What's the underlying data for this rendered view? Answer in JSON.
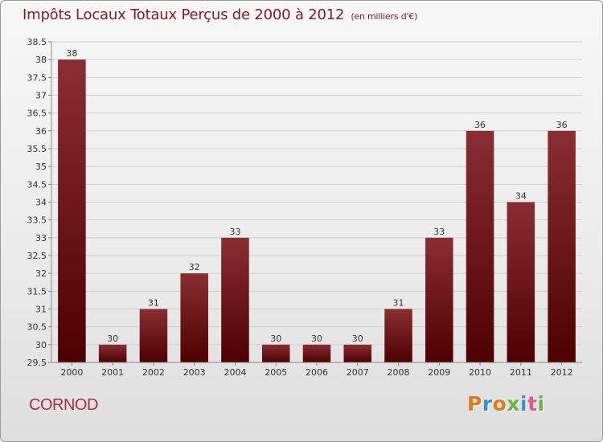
{
  "title": "Impôts Locaux Totaux Perçus de 2000 à 2012",
  "title_unit": "(en milliers d'€)",
  "city": "CORNOD",
  "logo": {
    "text": "Proxiti",
    "letter_colors": [
      "#e07b1a",
      "#3a8fd0",
      "#e07b1a",
      "#6db33f",
      "#3a8fd0",
      "#e05a8a",
      "#6db33f"
    ]
  },
  "colors": {
    "bar_top": "#8a2e34",
    "bar_bottom": "#4e0000",
    "grid": "#cfcfcf",
    "axis": "#888888"
  },
  "chart_data": {
    "type": "bar",
    "title": "Impôts Locaux Totaux Perçus de 2000 à 2012",
    "xlabel": "",
    "ylabel": "",
    "ylim": [
      29.5,
      38.5
    ],
    "ytick_step": 0.5,
    "ytick_labels": [
      "29.5",
      "30",
      "30.5",
      "31",
      "31.5",
      "32",
      "32.5",
      "33",
      "33.5",
      "34",
      "34.5",
      "35",
      "35.5",
      "36",
      "36.5",
      "37",
      "37.5",
      "38",
      "38.5"
    ],
    "grid": true,
    "categories": [
      "2000",
      "2001",
      "2002",
      "2003",
      "2004",
      "2005",
      "2006",
      "2007",
      "2008",
      "2009",
      "2010",
      "2011",
      "2012"
    ],
    "values": [
      38,
      30,
      31,
      32,
      33,
      30,
      30,
      30,
      31,
      33,
      36,
      34,
      36
    ],
    "value_labels": [
      "38",
      "30",
      "31",
      "32",
      "33",
      "30",
      "30",
      "30",
      "31",
      "33",
      "36",
      "34",
      "36"
    ]
  }
}
